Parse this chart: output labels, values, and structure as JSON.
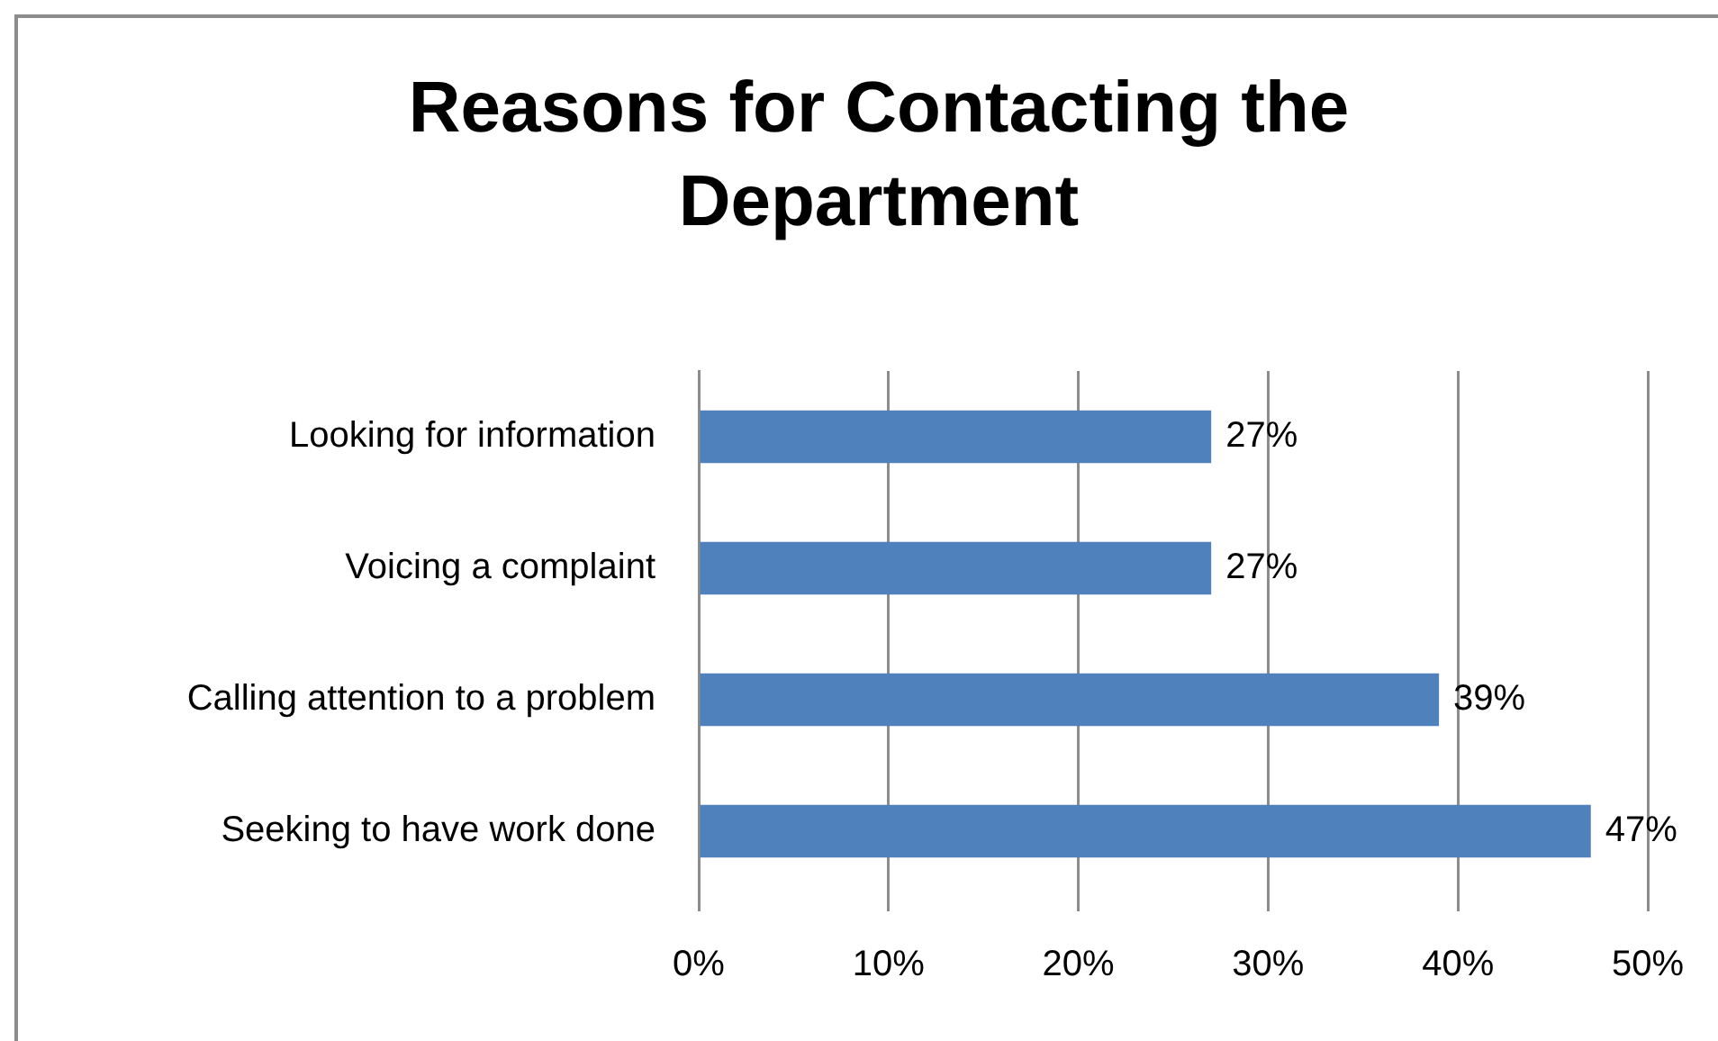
{
  "chart_data": {
    "type": "bar",
    "orientation": "horizontal",
    "title": "Reasons for Contacting the Department",
    "categories": [
      "Looking for information",
      "Voicing a complaint",
      "Calling attention to a problem",
      "Seeking to have work done"
    ],
    "values": [
      27,
      27,
      39,
      47
    ],
    "value_labels": [
      "27%",
      "27%",
      "39%",
      "47%"
    ],
    "color": "#4f81bd",
    "xlim": [
      0,
      50
    ],
    "xticks": [
      {
        "value": 0,
        "label": "0%"
      },
      {
        "value": 10,
        "label": "10%"
      },
      {
        "value": 20,
        "label": "20%"
      },
      {
        "value": 30,
        "label": "30%"
      },
      {
        "value": 40,
        "label": "40%"
      },
      {
        "value": 50,
        "label": "50%"
      }
    ],
    "grid": "x",
    "legend": false
  }
}
